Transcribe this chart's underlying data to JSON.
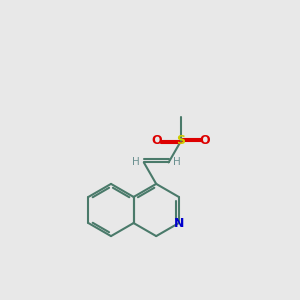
{
  "bg_color": "#e8e8e8",
  "bond_color": "#4a7a6a",
  "N_color": "#0000cc",
  "O_color": "#dd0000",
  "S_color": "#cccc00",
  "C_color": "#4a7a6a",
  "H_color": "#6a9090",
  "lw": 1.5,
  "lw2": 1.5,
  "figsize": [
    3.0,
    3.0
  ],
  "dpi": 100,
  "xlim": [
    0,
    10
  ],
  "ylim": [
    0,
    10
  ]
}
